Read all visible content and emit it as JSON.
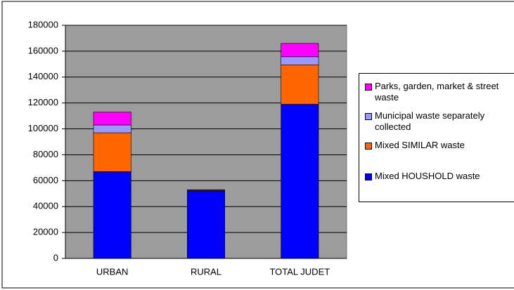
{
  "chart_data": {
    "type": "stacked_bar",
    "categories": [
      "URBAN",
      "RURAL",
      "TOTAL JUDET"
    ],
    "series": [
      {
        "name": "Mixed HOUSHOLD waste",
        "color": "#0000ff",
        "values": [
          67000,
          52000,
          119000
        ]
      },
      {
        "name": "Mixed SIMILAR waste",
        "color": "#ff6600",
        "values": [
          30000,
          500,
          30500
        ]
      },
      {
        "name": "Municipal waste separately collected",
        "color": "#9999ff",
        "values": [
          6000,
          200,
          6200
        ]
      },
      {
        "name": "Parks, garden, market & street waste",
        "color": "#ff00ff",
        "values": [
          10000,
          300,
          10300
        ]
      }
    ],
    "ylim": [
      0,
      180000
    ],
    "yticks": [
      0,
      20000,
      40000,
      60000,
      80000,
      100000,
      120000,
      140000,
      160000,
      180000
    ],
    "grid": true,
    "legend": "right"
  }
}
